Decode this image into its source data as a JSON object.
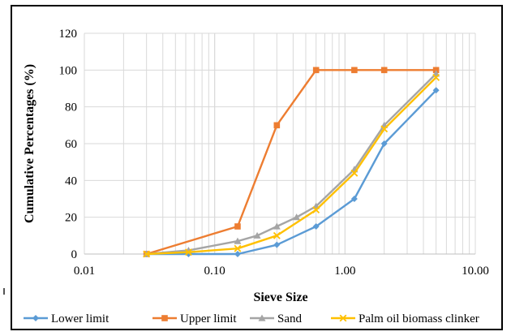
{
  "chart_data": {
    "type": "line",
    "xlabel": "Sieve Size",
    "ylabel": "Cumulative Percentages (%)",
    "x_scale": "log",
    "xlim": [
      0.01,
      10
    ],
    "ylim": [
      0,
      120
    ],
    "x_ticks": [
      0.01,
      0.1,
      1,
      10
    ],
    "x_tick_labels": [
      "0.01",
      "0.10",
      "1.00",
      "10.00"
    ],
    "y_ticks": [
      0,
      20,
      40,
      60,
      80,
      100,
      120
    ],
    "y_tick_labels": [
      "0",
      "20",
      "40",
      "60",
      "80",
      "100",
      "120"
    ],
    "grid": true,
    "legend_position": "bottom",
    "series": [
      {
        "name": "Lower limit",
        "color": "#5b9bd5",
        "marker": "diamond",
        "x": [
          0.03,
          0.063,
          0.15,
          0.3,
          0.6,
          1.18,
          2,
          5
        ],
        "y": [
          0,
          0,
          0,
          5,
          15,
          30,
          60,
          89
        ]
      },
      {
        "name": "Upper limit",
        "color": "#ed7d31",
        "marker": "square",
        "x": [
          0.03,
          0.15,
          0.3,
          0.6,
          1.18,
          2,
          5
        ],
        "y": [
          0,
          15,
          70,
          100,
          100,
          100,
          100
        ]
      },
      {
        "name": "Sand",
        "color": "#a5a5a5",
        "marker": "triangle",
        "x": [
          0.03,
          0.063,
          0.15,
          0.212,
          0.3,
          0.425,
          0.6,
          1.18,
          2,
          5
        ],
        "y": [
          0,
          2,
          7,
          10,
          15,
          20,
          26,
          46,
          70,
          98
        ]
      },
      {
        "name": "Palm oil biomass clinker",
        "color": "#ffc000",
        "marker": "x",
        "x": [
          0.03,
          0.063,
          0.15,
          0.3,
          0.6,
          1.18,
          2,
          5
        ],
        "y": [
          0,
          1,
          3,
          10,
          24,
          44,
          68,
          96
        ]
      }
    ]
  }
}
